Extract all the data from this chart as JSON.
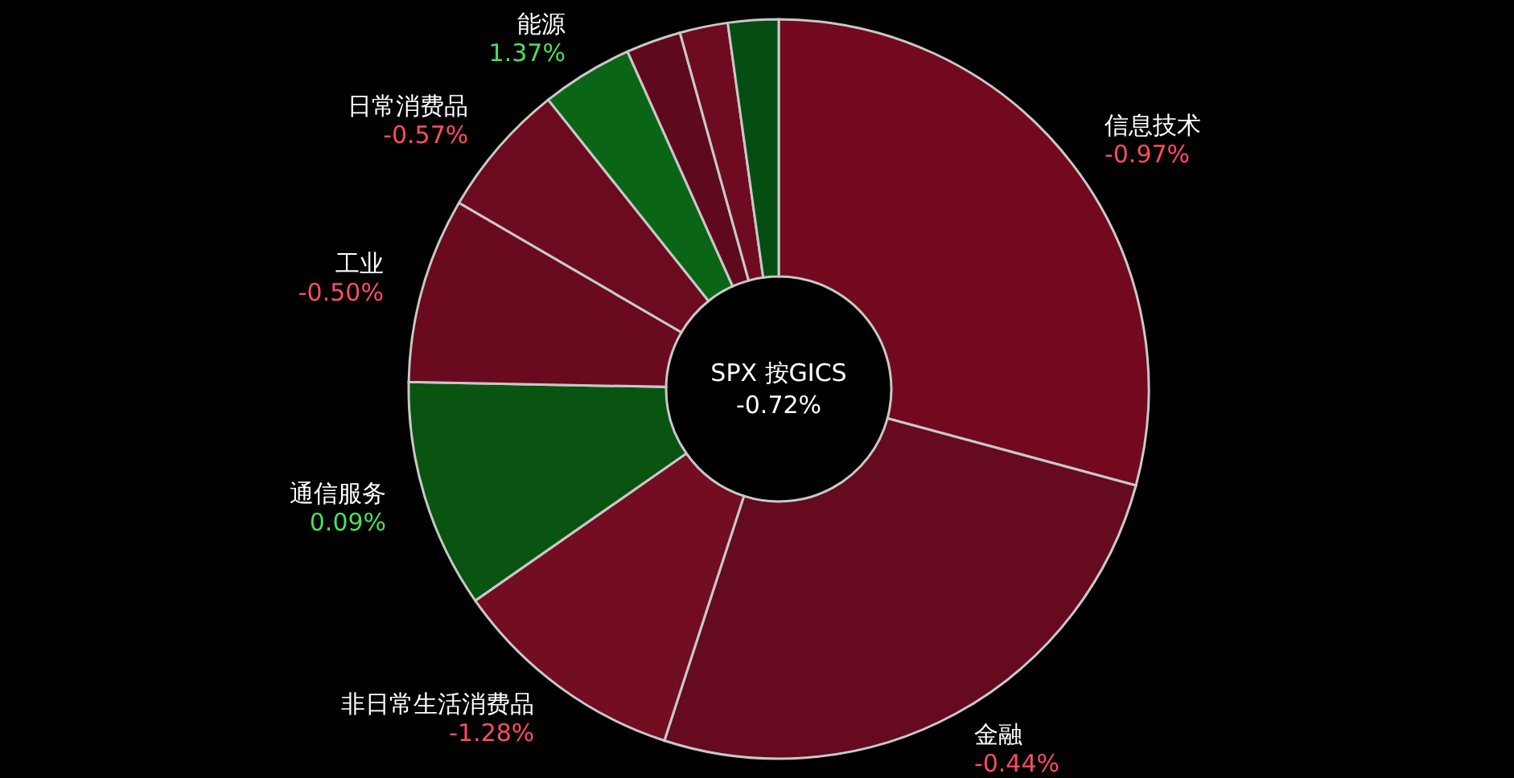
{
  "chart_data": {
    "type": "donut",
    "title": "SPX 按GICS",
    "subtitle": "-0.72%",
    "categories": [
      "信息技术",
      "金融",
      "非日常生活消费品",
      "通信服务",
      "工业",
      "日常消费品",
      "能源",
      null,
      null,
      null
    ],
    "values": [
      29.2,
      25.8,
      10.3,
      10.0,
      8.1,
      5.9,
      4.0,
      2.4,
      2.1,
      2.2
    ],
    "colors": [
      "#72091f",
      "#650a1f",
      "#730d22",
      "#0a5412",
      "#6a0a1e",
      "#6c0b1f",
      "#0a6616",
      "#5f0a1c",
      "#6e0b20",
      "#064d12"
    ],
    "annotations": [
      {
        "text": "-0.97%",
        "x": "信息技术"
      },
      {
        "text": "-0.44%",
        "x": "金融"
      },
      {
        "text": "-1.28%",
        "x": "非日常生活消费品"
      },
      {
        "text": "0.09%",
        "x": "通信服务"
      },
      {
        "text": "-0.50%",
        "x": "工业"
      },
      {
        "text": "-0.57%",
        "x": "日常消费品"
      },
      {
        "text": "1.37%",
        "x": "能源"
      }
    ]
  }
}
